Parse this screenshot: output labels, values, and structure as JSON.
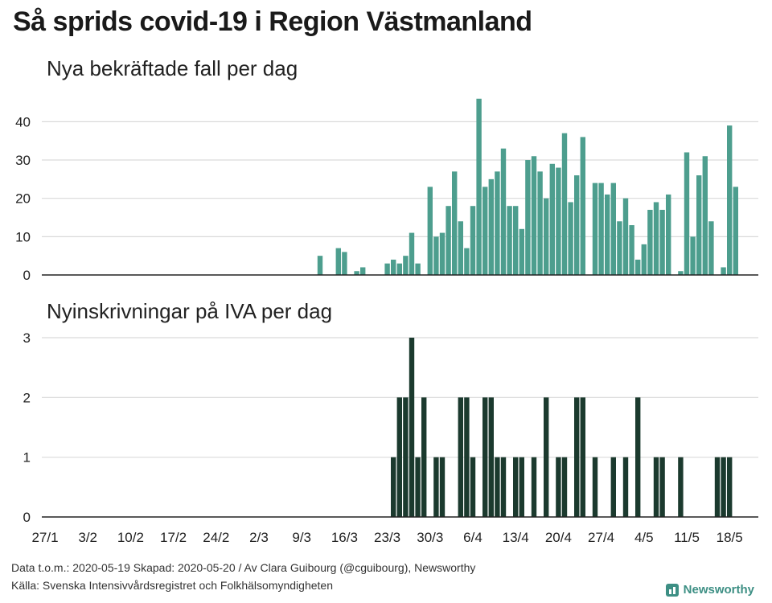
{
  "title": "Så sprids covid-19 i Region Västmanland",
  "footer": {
    "line1": "Data t.o.m.: 2020-05-19 Skapad: 2020-05-20 / Av Clara Guibourg (@cguibourg), Newsworthy",
    "line2": "Källa: Svenska Intensivvårdsregistret och Folkhälsomyndigheten",
    "brand": "Newsworthy"
  },
  "colors": {
    "cases": "#4d9e8e",
    "icu": "#1b3a2e",
    "grid": "#d9d9d9",
    "axis": "#222222"
  },
  "chart_data": [
    {
      "type": "bar",
      "title": "Nya bekräftade fall per dag",
      "x_start": "2020-01-27",
      "x_end": "2020-05-19",
      "xtick_labels": [
        "27/1",
        "3/2",
        "10/2",
        "17/2",
        "24/2",
        "2/3",
        "9/3",
        "16/3",
        "23/3",
        "30/3",
        "6/4",
        "13/4",
        "20/4",
        "27/4",
        "4/5",
        "11/5",
        "18/5"
      ],
      "ylim": [
        0,
        47
      ],
      "yticks": [
        0,
        10,
        20,
        30,
        40
      ],
      "grid": true,
      "points": [
        [
          "2020-03-12",
          5
        ],
        [
          "2020-03-15",
          7
        ],
        [
          "2020-03-16",
          6
        ],
        [
          "2020-03-18",
          1
        ],
        [
          "2020-03-19",
          2
        ],
        [
          "2020-03-23",
          3
        ],
        [
          "2020-03-24",
          4
        ],
        [
          "2020-03-25",
          3
        ],
        [
          "2020-03-26",
          5
        ],
        [
          "2020-03-27",
          11
        ],
        [
          "2020-03-28",
          3
        ],
        [
          "2020-03-30",
          23
        ],
        [
          "2020-03-31",
          10
        ],
        [
          "2020-04-01",
          11
        ],
        [
          "2020-04-02",
          18
        ],
        [
          "2020-04-03",
          27
        ],
        [
          "2020-04-04",
          14
        ],
        [
          "2020-04-05",
          7
        ],
        [
          "2020-04-06",
          18
        ],
        [
          "2020-04-07",
          46
        ],
        [
          "2020-04-08",
          23
        ],
        [
          "2020-04-09",
          25
        ],
        [
          "2020-04-10",
          27
        ],
        [
          "2020-04-11",
          33
        ],
        [
          "2020-04-12",
          18
        ],
        [
          "2020-04-13",
          18
        ],
        [
          "2020-04-14",
          12
        ],
        [
          "2020-04-15",
          30
        ],
        [
          "2020-04-16",
          31
        ],
        [
          "2020-04-17",
          27
        ],
        [
          "2020-04-18",
          20
        ],
        [
          "2020-04-19",
          29
        ],
        [
          "2020-04-20",
          28
        ],
        [
          "2020-04-21",
          37
        ],
        [
          "2020-04-22",
          19
        ],
        [
          "2020-04-23",
          26
        ],
        [
          "2020-04-24",
          36
        ],
        [
          "2020-04-26",
          24
        ],
        [
          "2020-04-27",
          24
        ],
        [
          "2020-04-28",
          21
        ],
        [
          "2020-04-29",
          24
        ],
        [
          "2020-04-30",
          14
        ],
        [
          "2020-05-01",
          20
        ],
        [
          "2020-05-02",
          13
        ],
        [
          "2020-05-03",
          4
        ],
        [
          "2020-05-04",
          8
        ],
        [
          "2020-05-05",
          17
        ],
        [
          "2020-05-06",
          19
        ],
        [
          "2020-05-07",
          17
        ],
        [
          "2020-05-08",
          21
        ],
        [
          "2020-05-10",
          1
        ],
        [
          "2020-05-11",
          32
        ],
        [
          "2020-05-12",
          10
        ],
        [
          "2020-05-13",
          26
        ],
        [
          "2020-05-14",
          31
        ],
        [
          "2020-05-15",
          14
        ],
        [
          "2020-05-17",
          2
        ],
        [
          "2020-05-18",
          39
        ],
        [
          "2020-05-19",
          23
        ]
      ]
    },
    {
      "type": "bar",
      "title": "Nyinskrivningar på IVA per dag",
      "x_start": "2020-01-27",
      "x_end": "2020-05-19",
      "xtick_labels": [
        "27/1",
        "3/2",
        "10/2",
        "17/2",
        "24/2",
        "2/3",
        "9/3",
        "16/3",
        "23/3",
        "30/3",
        "6/4",
        "13/4",
        "20/4",
        "27/4",
        "4/5",
        "11/5",
        "18/5"
      ],
      "ylim": [
        0,
        3
      ],
      "yticks": [
        0,
        1,
        2,
        3
      ],
      "grid": true,
      "points": [
        [
          "2020-03-24",
          1
        ],
        [
          "2020-03-25",
          2
        ],
        [
          "2020-03-26",
          2
        ],
        [
          "2020-03-27",
          3
        ],
        [
          "2020-03-28",
          1
        ],
        [
          "2020-03-29",
          2
        ],
        [
          "2020-03-31",
          1
        ],
        [
          "2020-04-01",
          1
        ],
        [
          "2020-04-04",
          2
        ],
        [
          "2020-04-05",
          2
        ],
        [
          "2020-04-06",
          1
        ],
        [
          "2020-04-08",
          2
        ],
        [
          "2020-04-09",
          2
        ],
        [
          "2020-04-10",
          1
        ],
        [
          "2020-04-11",
          1
        ],
        [
          "2020-04-13",
          1
        ],
        [
          "2020-04-14",
          1
        ],
        [
          "2020-04-16",
          1
        ],
        [
          "2020-04-18",
          2
        ],
        [
          "2020-04-20",
          1
        ],
        [
          "2020-04-21",
          1
        ],
        [
          "2020-04-23",
          2
        ],
        [
          "2020-04-24",
          2
        ],
        [
          "2020-04-26",
          1
        ],
        [
          "2020-04-29",
          1
        ],
        [
          "2020-05-01",
          1
        ],
        [
          "2020-05-03",
          2
        ],
        [
          "2020-05-06",
          1
        ],
        [
          "2020-05-07",
          1
        ],
        [
          "2020-05-10",
          1
        ],
        [
          "2020-05-16",
          1
        ],
        [
          "2020-05-17",
          1
        ],
        [
          "2020-05-18",
          1
        ]
      ]
    }
  ]
}
